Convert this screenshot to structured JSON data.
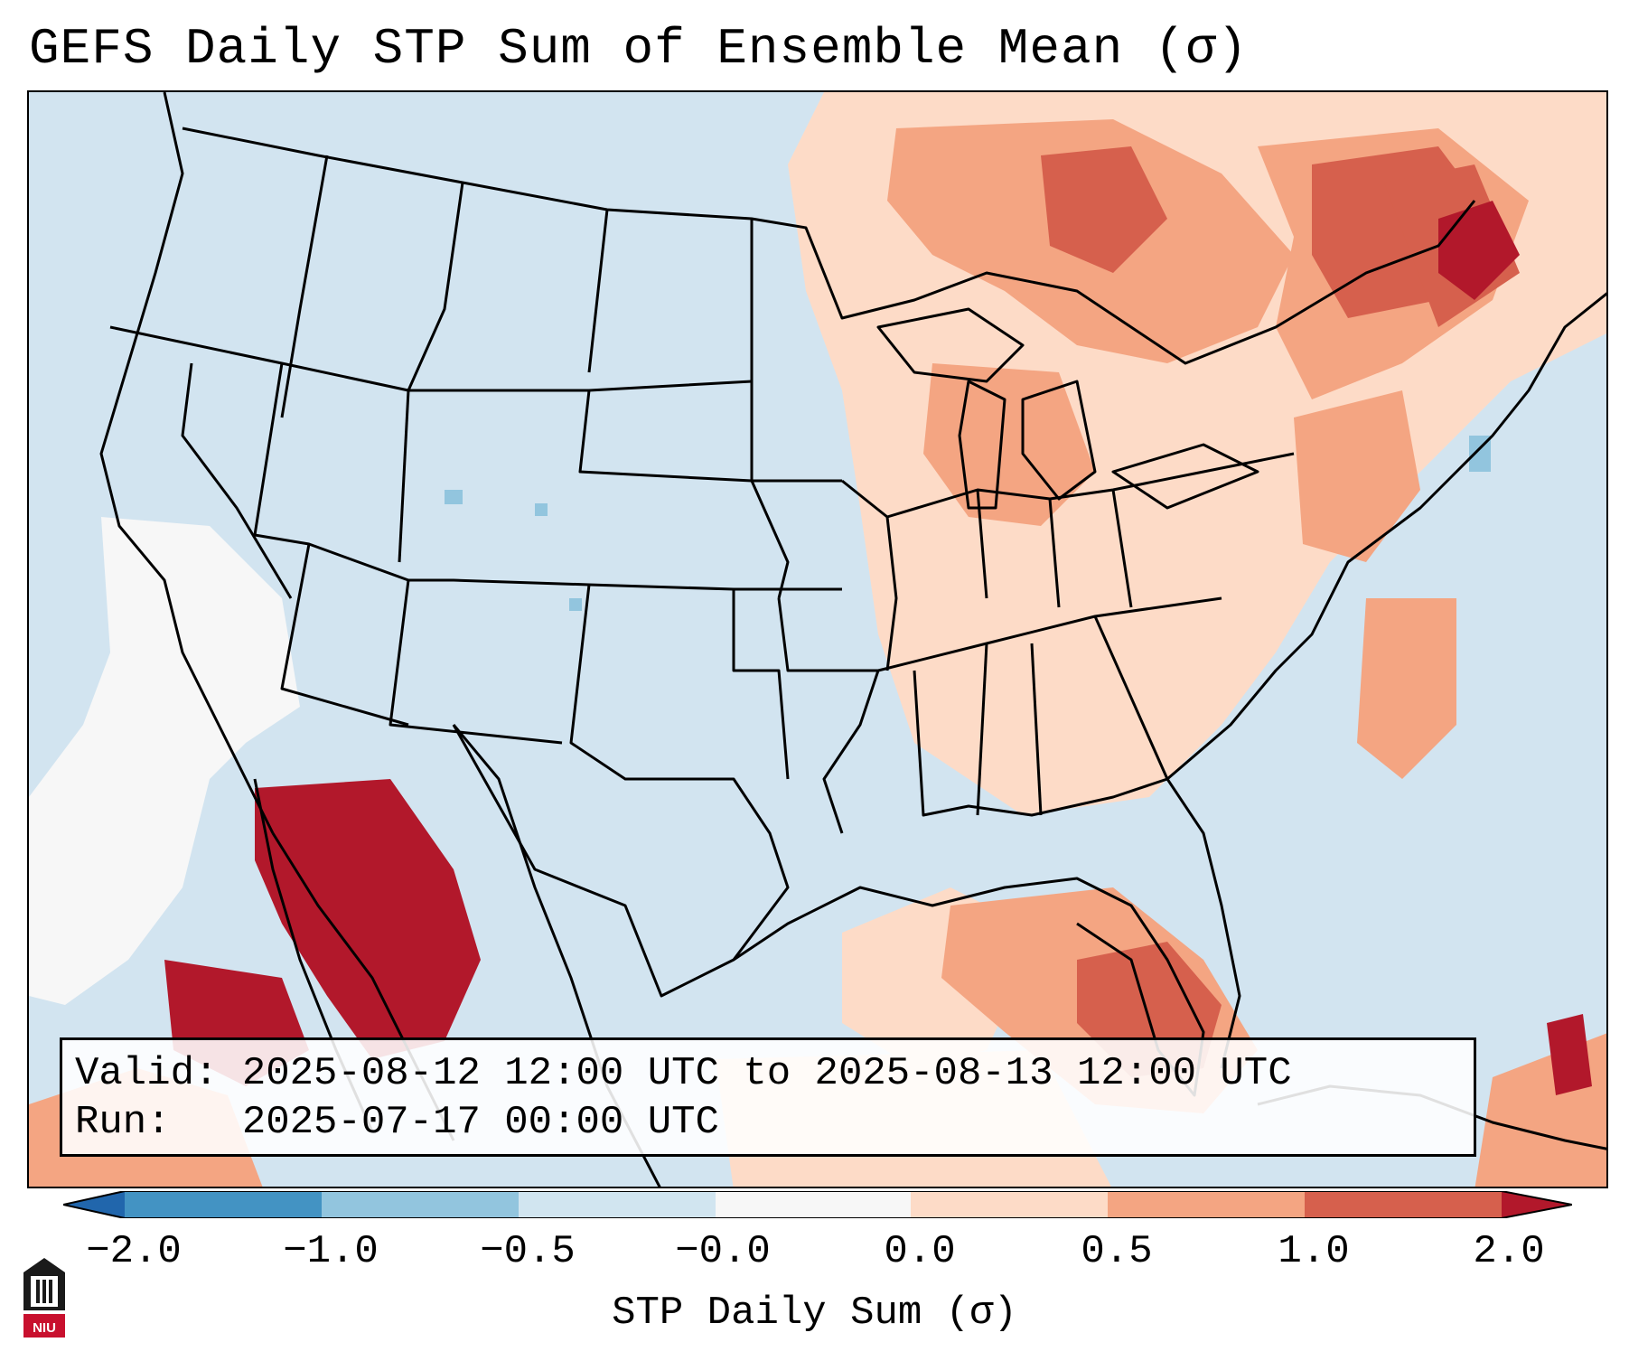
{
  "title": "GEFS Daily STP Sum of Ensemble Mean (σ)",
  "info": {
    "valid_line": "Valid: 2025-08-12 12:00 UTC to 2025-08-13 12:00 UTC",
    "run_line": "Run:   2025-07-17 00:00 UTC"
  },
  "colorbar": {
    "label": "STP Daily Sum (σ)",
    "ticks": [
      "−2.0",
      "−1.0",
      "−0.5",
      "−0.0",
      "0.0",
      "0.5",
      "1.0",
      "2.0"
    ],
    "colors": {
      "under": "#2166ac",
      "b1": "#4393c3",
      "b2": "#92c5de",
      "b3": "#d1e5f0",
      "b4": "#f7f7f7",
      "b5": "#fddbc7",
      "b6": "#f4a582",
      "b7": "#d6604d",
      "over": "#b2182b"
    }
  },
  "logo": {
    "text": "NIU"
  }
}
